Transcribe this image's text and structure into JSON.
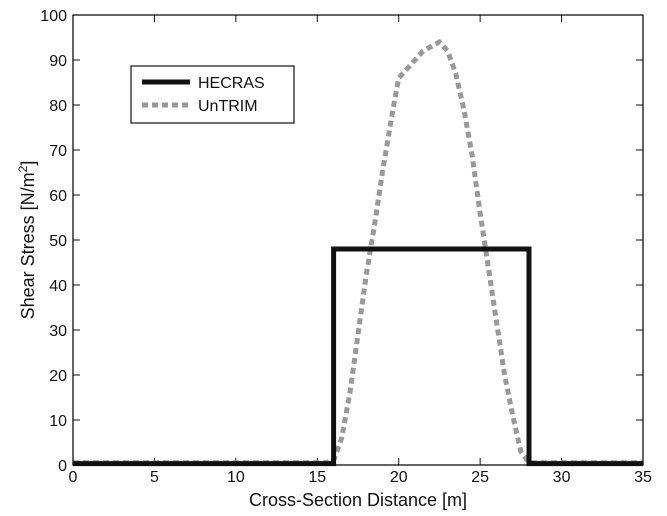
{
  "chart_data": {
    "type": "line",
    "xlabel": "Cross-Section Distance [m]",
    "ylabel_main": "Shear Stress [N/m",
    "ylabel_sup": "2",
    "ylabel_end": "]",
    "xlim": [
      0,
      35
    ],
    "ylim": [
      0,
      100
    ],
    "xticks": [
      0,
      5,
      10,
      15,
      20,
      25,
      30,
      35
    ],
    "yticks": [
      0,
      10,
      20,
      30,
      40,
      50,
      60,
      70,
      80,
      90,
      100
    ],
    "grid": false,
    "legend_position": "top-left",
    "series": [
      {
        "name": "HECRAS",
        "style": "solid",
        "color": "#111111",
        "x": [
          0,
          16,
          16,
          28,
          28,
          35
        ],
        "y": [
          0.3,
          0.3,
          48,
          48,
          0.3,
          0.3
        ]
      },
      {
        "name": "UnTRIM",
        "style": "dashed",
        "color": "#999999",
        "x": [
          0,
          15.5,
          16.0,
          16.5,
          17.0,
          17.5,
          18.0,
          18.5,
          19.0,
          19.5,
          20.0,
          20.5,
          21.0,
          21.5,
          22.0,
          22.5,
          23.0,
          23.5,
          24.0,
          24.5,
          25.0,
          25.5,
          26.0,
          26.5,
          27.0,
          27.5,
          28.0,
          35
        ],
        "y": [
          0.5,
          0.5,
          1,
          6,
          16,
          29,
          42,
          53,
          65,
          76,
          86,
          88,
          90,
          92,
          93,
          94,
          92,
          87,
          79,
          69,
          56,
          44,
          32,
          20,
          11,
          3,
          0.5,
          0.5
        ]
      }
    ]
  }
}
